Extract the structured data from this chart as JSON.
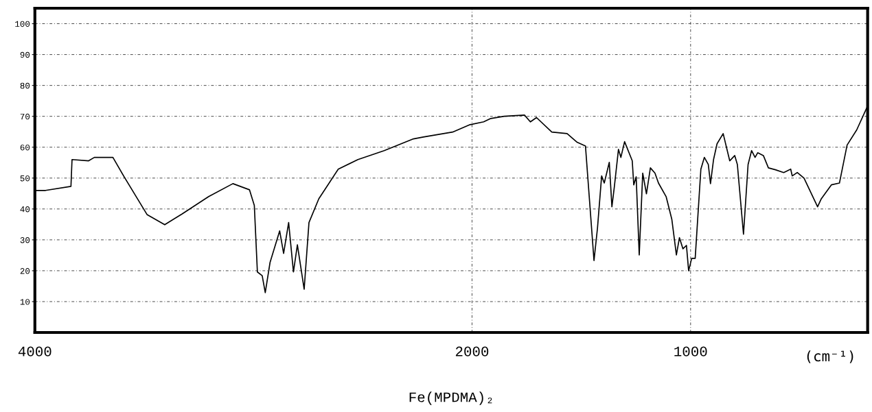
{
  "chart_data": {
    "type": "line",
    "title": "Fe(MPDMA)₂",
    "xlabel": "(cm⁻¹)",
    "xlim": [
      4000,
      190
    ],
    "xticks": [
      4000,
      2000,
      1000
    ],
    "ylim": [
      0,
      105
    ],
    "yticks": [
      10,
      20,
      30,
      40,
      50,
      60,
      70,
      80,
      90,
      100
    ],
    "grid": true,
    "series": [
      {
        "color": "#000000",
        "x": [
          4000,
          3951,
          3835,
          3830,
          3754,
          3728,
          3643,
          3594,
          3487,
          3406,
          3326,
          3205,
          3094,
          3018,
          2996,
          2982,
          2960,
          2946,
          2924,
          2880,
          2862,
          2839,
          2817,
          2799,
          2768,
          2746,
          2701,
          2612,
          2522,
          2402,
          2268,
          2223,
          2089,
          2009,
          1947,
          1914,
          1853,
          1760,
          1733,
          1705,
          1635,
          1565,
          1519,
          1481,
          1442,
          1426,
          1407,
          1395,
          1372,
          1360,
          1349,
          1330,
          1319,
          1302,
          1267,
          1260,
          1249,
          1235,
          1219,
          1202,
          1184,
          1163,
          1147,
          1112,
          1086,
          1065,
          1051,
          1035,
          1019,
          1009,
          995,
          979,
          953,
          937,
          919,
          909,
          895,
          879,
          851,
          821,
          798,
          786,
          758,
          737,
          721,
          705,
          693,
          667,
          644,
          612,
          574,
          542,
          535,
          512,
          481,
          419,
          402,
          356,
          319,
          284,
          240,
          193
        ],
        "values": [
          46.0,
          46.0,
          47.3,
          56.0,
          55.6,
          56.7,
          56.7,
          50.7,
          38.2,
          34.9,
          38.4,
          44.0,
          48.2,
          46.2,
          41.1,
          19.6,
          18.4,
          12.9,
          22.7,
          32.9,
          25.6,
          35.6,
          19.6,
          28.4,
          14.0,
          35.6,
          43.3,
          52.9,
          56.0,
          58.9,
          62.7,
          63.3,
          64.9,
          67.3,
          68.2,
          69.3,
          70.0,
          70.4,
          68.2,
          69.6,
          64.9,
          64.4,
          61.6,
          60.4,
          23.3,
          33.8,
          50.7,
          48.4,
          55.1,
          40.7,
          47.1,
          59.3,
          56.7,
          61.8,
          55.6,
          47.8,
          50.4,
          25.1,
          51.6,
          44.9,
          53.3,
          51.6,
          48.4,
          44.0,
          36.7,
          25.1,
          30.7,
          27.1,
          28.2,
          20.0,
          24.0,
          24.0,
          52.9,
          56.7,
          54.4,
          48.2,
          56.0,
          61.1,
          64.4,
          55.6,
          57.3,
          54.4,
          31.8,
          54.4,
          58.9,
          56.7,
          58.2,
          57.3,
          53.3,
          52.7,
          51.8,
          52.9,
          50.7,
          51.8,
          50.0,
          40.7,
          43.3,
          47.8,
          48.4,
          60.7,
          65.6,
          72.9
        ]
      }
    ]
  }
}
